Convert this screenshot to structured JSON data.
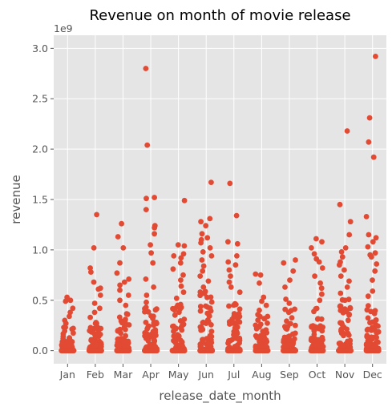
{
  "chart_data": {
    "type": "scatter",
    "subtype": "strip",
    "title": "Revenue on month  of movie release",
    "xlabel": "release_date_month",
    "ylabel": "revenue",
    "y_offset_label": "1e9",
    "ylim": [
      -0.13,
      3.13
    ],
    "y_ticks": [
      0.0,
      0.5,
      1.0,
      1.5,
      2.0,
      2.5,
      3.0
    ],
    "y_tick_labels": [
      "0.0",
      "0.5",
      "1.0",
      "1.5",
      "2.0",
      "2.5",
      "3.0"
    ],
    "grid": true,
    "style": "ggplot",
    "point_color": "#E24A33",
    "categories": [
      "Jan",
      "Feb",
      "Mar",
      "Apr",
      "May",
      "Jun",
      "Jul",
      "Aug",
      "Sep",
      "Oct",
      "Nov",
      "Dec"
    ],
    "outliers": {
      "Jan": [
        0.53,
        0.5,
        0.49,
        0.42,
        0.38,
        0.34,
        0.3,
        0.27
      ],
      "Feb": [
        1.35,
        1.02,
        0.82,
        0.78,
        0.68,
        0.62,
        0.61,
        0.55,
        0.47,
        0.42,
        0.38,
        0.33
      ],
      "Mar": [
        1.26,
        1.13,
        1.02,
        0.87,
        0.77,
        0.71,
        0.68,
        0.65,
        0.6,
        0.55,
        0.5,
        0.45
      ],
      "Apr": [
        2.8,
        2.04,
        1.52,
        1.51,
        1.4,
        1.24,
        1.22,
        1.16,
        1.05,
        0.97,
        0.87,
        0.71,
        0.63,
        0.55,
        0.48
      ],
      "May": [
        1.49,
        1.05,
        1.04,
        0.96,
        0.94,
        0.92,
        0.87,
        0.81,
        0.75,
        0.7,
        0.64,
        0.58,
        0.52
      ],
      "Jun": [
        1.67,
        1.31,
        1.28,
        1.24,
        1.16,
        1.12,
        1.1,
        1.07,
        1.02,
        0.98,
        0.94,
        0.9,
        0.84,
        0.79,
        0.74,
        0.69,
        0.63
      ],
      "Jul": [
        1.66,
        1.34,
        1.08,
        1.06,
        0.94,
        0.88,
        0.85,
        0.8,
        0.74,
        0.68,
        0.63,
        0.58
      ],
      "Aug": [
        0.76,
        0.75,
        0.67,
        0.53,
        0.49,
        0.45,
        0.4
      ],
      "Sep": [
        0.9,
        0.87,
        0.79,
        0.7,
        0.63,
        0.51,
        0.47
      ],
      "Oct": [
        1.11,
        1.08,
        1.02,
        0.96,
        0.91,
        0.88,
        0.82,
        0.74,
        0.67,
        0.62,
        0.56,
        0.5
      ],
      "Nov": [
        2.18,
        1.45,
        1.28,
        1.15,
        1.02,
        0.98,
        0.93,
        0.88,
        0.85,
        0.8,
        0.74,
        0.69,
        0.63,
        0.57
      ],
      "Dec": [
        2.92,
        2.31,
        2.07,
        1.92,
        1.33,
        1.15,
        1.12,
        1.08,
        1.03,
        0.97,
        0.95,
        0.93,
        0.86,
        0.79,
        0.7,
        0.59,
        0.54
      ]
    },
    "dense_range": {
      "Jan": 0.26,
      "Feb": 0.3,
      "Mar": 0.4,
      "Apr": 0.44,
      "May": 0.5,
      "Jun": 0.6,
      "Jul": 0.55,
      "Aug": 0.38,
      "Sep": 0.42,
      "Oct": 0.45,
      "Nov": 0.52,
      "Dec": 0.5
    }
  }
}
